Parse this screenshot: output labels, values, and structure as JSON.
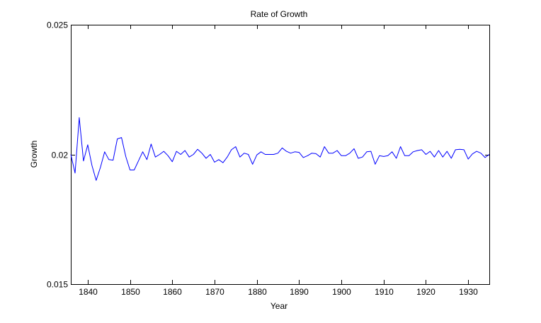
{
  "chart_data": {
    "type": "line",
    "title": "Rate of Growth",
    "xlabel": "Year",
    "ylabel": "Growth",
    "xlim": [
      1836,
      1935
    ],
    "ylim": [
      0.015,
      0.025
    ],
    "xticks": [
      1840,
      1850,
      1860,
      1870,
      1880,
      1890,
      1900,
      1910,
      1920,
      1930
    ],
    "xtick_labels": [
      "1840",
      "1850",
      "1860",
      "1870",
      "1880",
      "1890",
      "1900",
      "1910",
      "1920",
      "1930"
    ],
    "yticks": [
      0.015,
      0.02,
      0.025
    ],
    "ytick_labels": [
      "0.015",
      "0.02",
      "0.025"
    ],
    "grid": false,
    "series": [
      {
        "color": "#0000ff",
        "x": [
          1836,
          1837,
          1838,
          1839,
          1840,
          1841,
          1842,
          1843,
          1844,
          1845,
          1846,
          1847,
          1848,
          1849,
          1850,
          1851,
          1852,
          1853,
          1854,
          1855,
          1856,
          1857,
          1858,
          1859,
          1860,
          1861,
          1862,
          1863,
          1864,
          1865,
          1866,
          1867,
          1868,
          1869,
          1870,
          1871,
          1872,
          1873,
          1874,
          1875,
          1876,
          1877,
          1878,
          1879,
          1880,
          1881,
          1882,
          1883,
          1884,
          1885,
          1886,
          1887,
          1888,
          1889,
          1890,
          1891,
          1892,
          1893,
          1894,
          1895,
          1896,
          1897,
          1898,
          1899,
          1900,
          1901,
          1902,
          1903,
          1904,
          1905,
          1906,
          1907,
          1908,
          1909,
          1910,
          1911,
          1912,
          1913,
          1914,
          1915,
          1916,
          1917,
          1918,
          1919,
          1920,
          1921,
          1922,
          1923,
          1924,
          1925,
          1926,
          1927,
          1928,
          1929,
          1930,
          1931,
          1932,
          1933,
          1934,
          1935
        ],
        "y": [
          0.02,
          0.01928,
          0.02142,
          0.01975,
          0.02037,
          0.01958,
          0.019,
          0.0195,
          0.0201,
          0.0198,
          0.01978,
          0.0206,
          0.02065,
          0.01992,
          0.0194,
          0.0194,
          0.01975,
          0.0201,
          0.0198,
          0.0204,
          0.0199,
          0.02,
          0.02012,
          0.01995,
          0.01972,
          0.02012,
          0.02,
          0.02015,
          0.0199,
          0.02,
          0.0202,
          0.02005,
          0.01985,
          0.02,
          0.0197,
          0.0198,
          0.01968,
          0.0199,
          0.02018,
          0.0203,
          0.0199,
          0.02005,
          0.02,
          0.01962,
          0.01998,
          0.0201,
          0.02,
          0.02,
          0.02,
          0.02005,
          0.02025,
          0.02012,
          0.02005,
          0.0201,
          0.02008,
          0.01988,
          0.01995,
          0.02005,
          0.02003,
          0.0199,
          0.0203,
          0.02005,
          0.02005,
          0.02015,
          0.01995,
          0.01995,
          0.02005,
          0.02022,
          0.01985,
          0.0199,
          0.0201,
          0.02012,
          0.01962,
          0.01995,
          0.01992,
          0.01995,
          0.0201,
          0.01985,
          0.0203,
          0.01995,
          0.01995,
          0.0201,
          0.02015,
          0.02018,
          0.02,
          0.02012,
          0.0199,
          0.02015,
          0.0199,
          0.02012,
          0.01985,
          0.02018,
          0.0202,
          0.02018,
          0.01982,
          0.02002,
          0.02012,
          0.02005,
          0.01988,
          0.02
        ]
      }
    ]
  }
}
